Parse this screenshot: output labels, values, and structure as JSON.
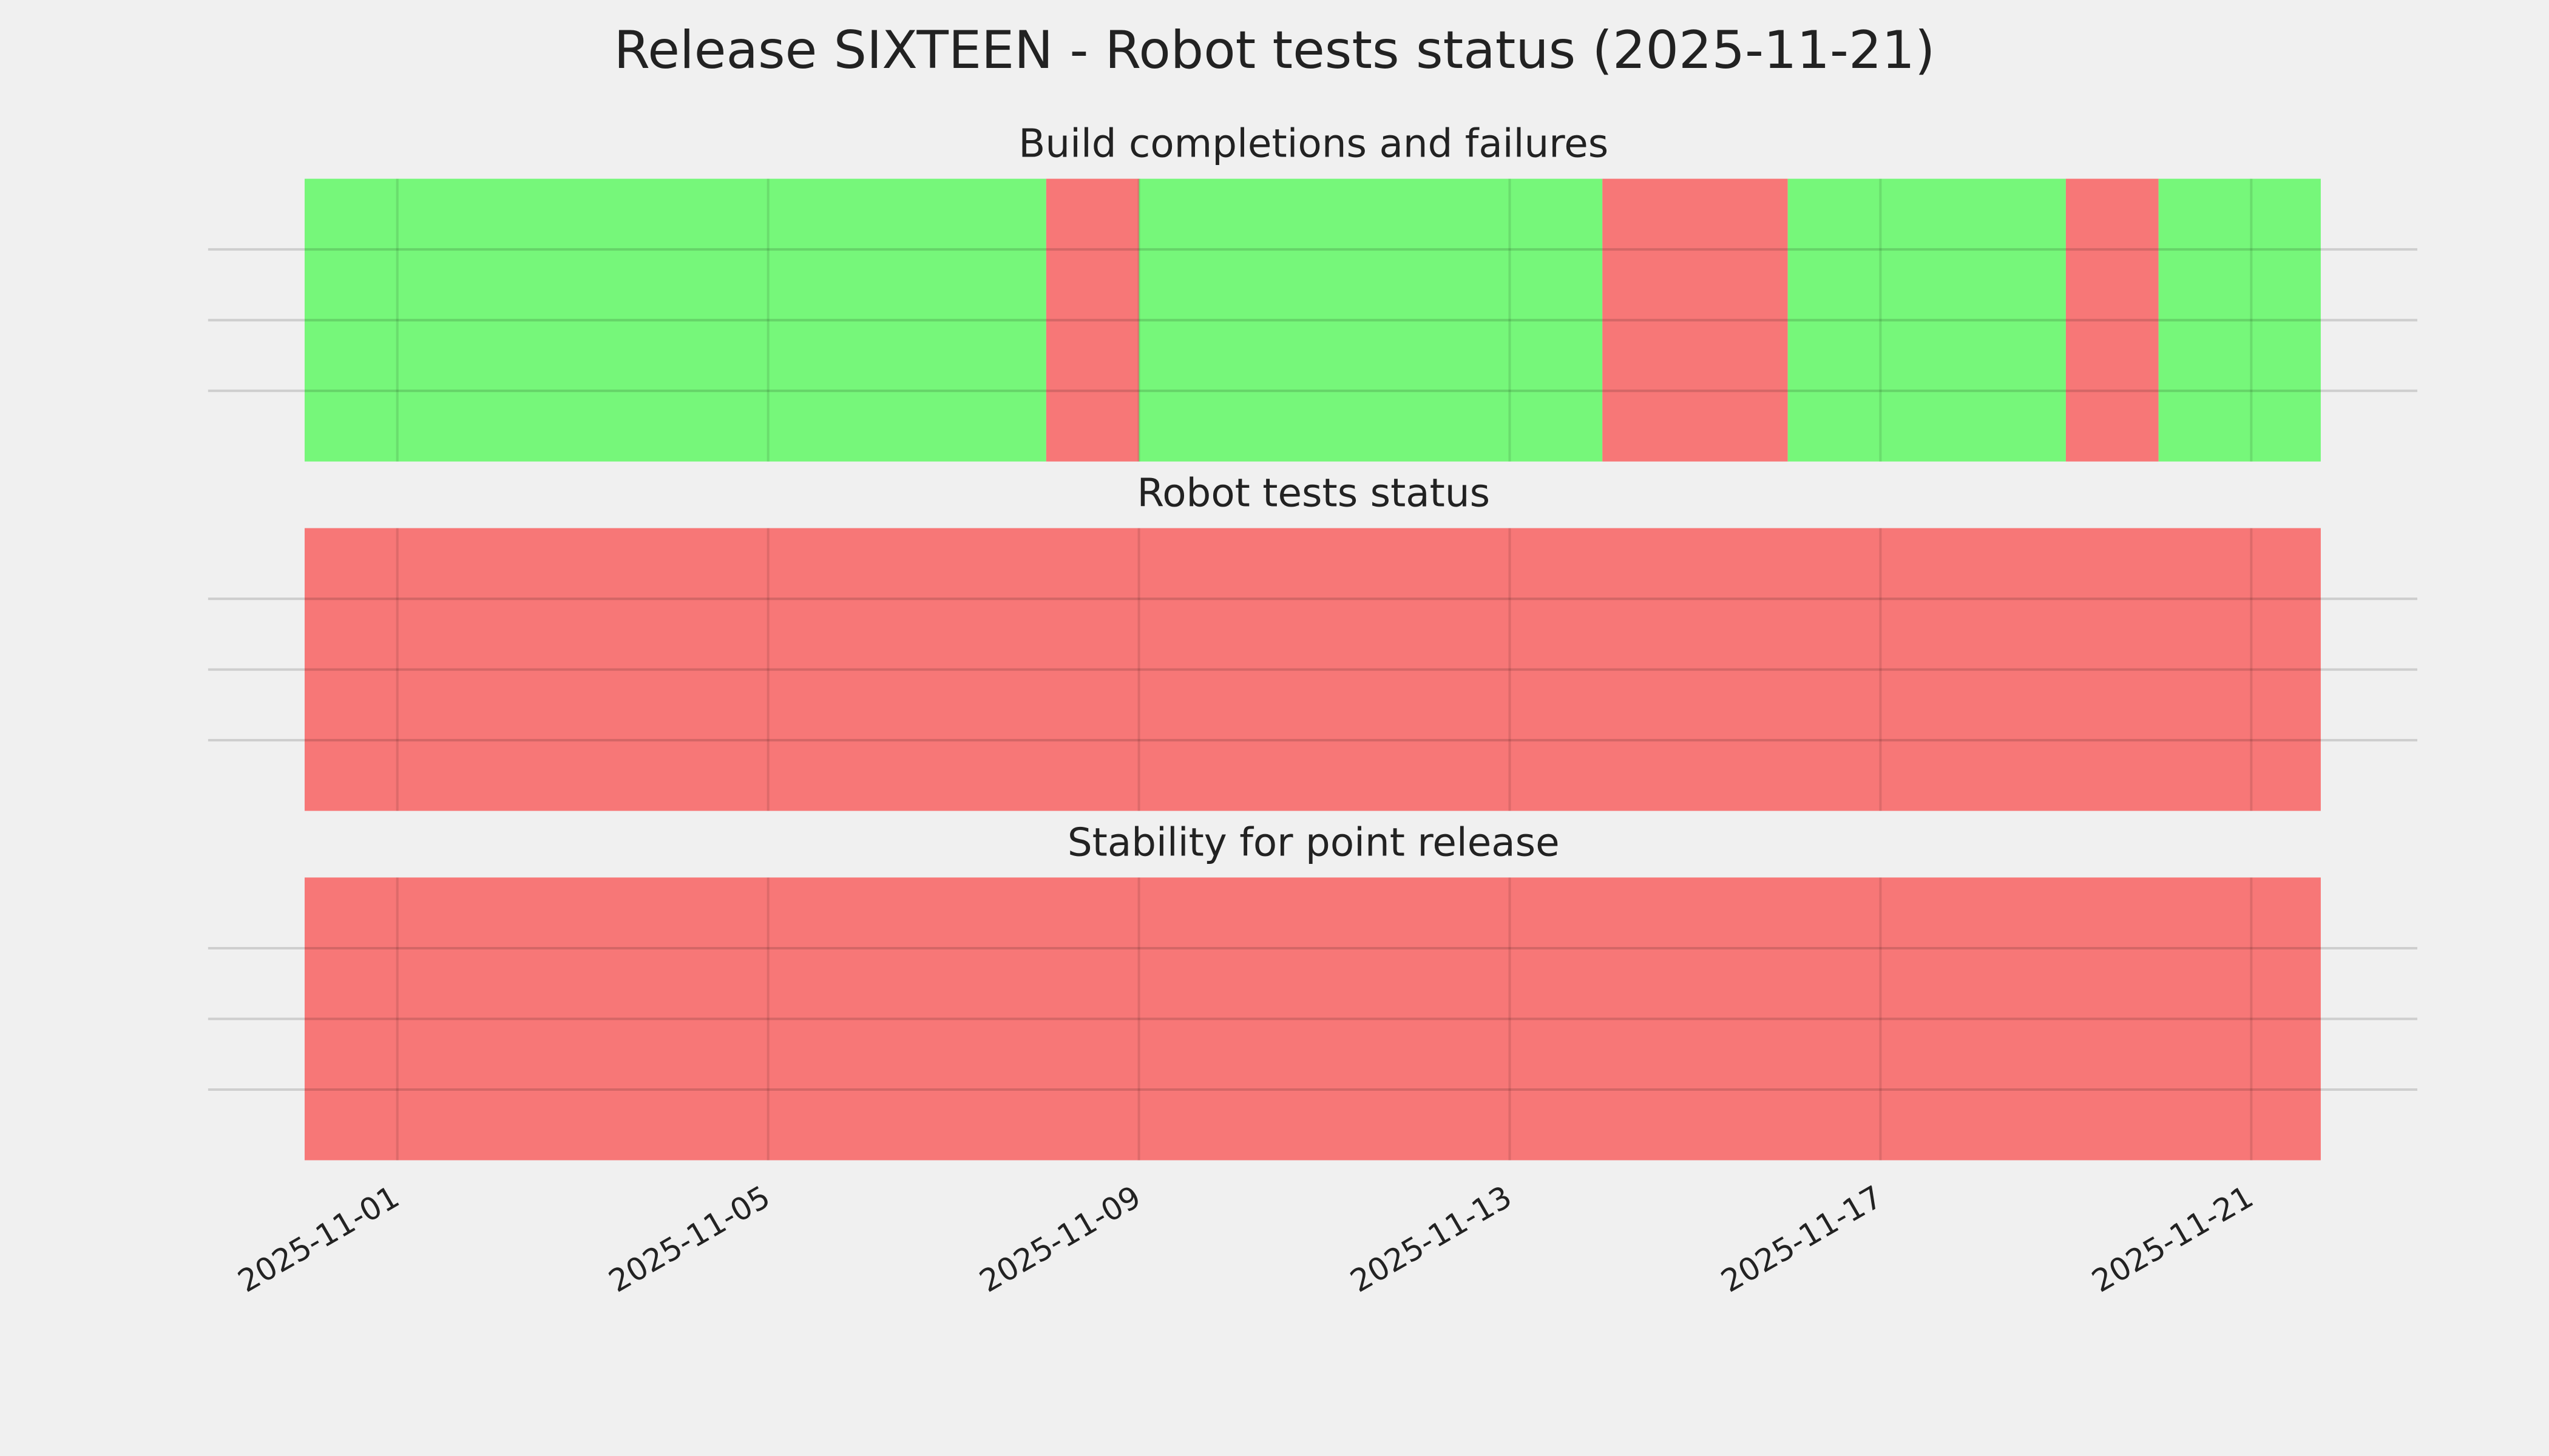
{
  "chart_data": {
    "type": "timeline",
    "title": "Release SIXTEEN - Robot tests status (2025-11-21)",
    "xlim": [
      "2025-10-29T23:00",
      "2025-11-22T19:00"
    ],
    "xticks": [
      "2025-11-01",
      "2025-11-05",
      "2025-11-09",
      "2025-11-13",
      "2025-11-17",
      "2025-11-21"
    ],
    "ylim": [
      0,
      1
    ],
    "yticks": [
      0.25,
      0.5,
      0.75
    ],
    "grid": true,
    "panels": [
      {
        "title": "Build completions and failures",
        "spans": [
          {
            "start": "2025-10-31",
            "end": "2025-11-08",
            "color": "#76f77a"
          },
          {
            "start": "2025-11-08",
            "end": "2025-11-09",
            "color": "#f77777"
          },
          {
            "start": "2025-11-09",
            "end": "2025-11-14",
            "color": "#76f77a"
          },
          {
            "start": "2025-11-14",
            "end": "2025-11-16",
            "color": "#f77777"
          },
          {
            "start": "2025-11-16",
            "end": "2025-11-19",
            "color": "#76f77a"
          },
          {
            "start": "2025-11-19",
            "end": "2025-11-20",
            "color": "#f77777"
          },
          {
            "start": "2025-11-20",
            "end": "2025-11-21T18:00",
            "color": "#76f77a"
          }
        ]
      },
      {
        "title": "Robot tests status",
        "spans": [
          {
            "start": "2025-10-31",
            "end": "2025-11-21T18:00",
            "color": "#f77777"
          }
        ]
      },
      {
        "title": "Stability for point release",
        "spans": [
          {
            "start": "2025-10-31",
            "end": "2025-11-21T18:00",
            "color": "#f77777"
          }
        ]
      }
    ]
  }
}
